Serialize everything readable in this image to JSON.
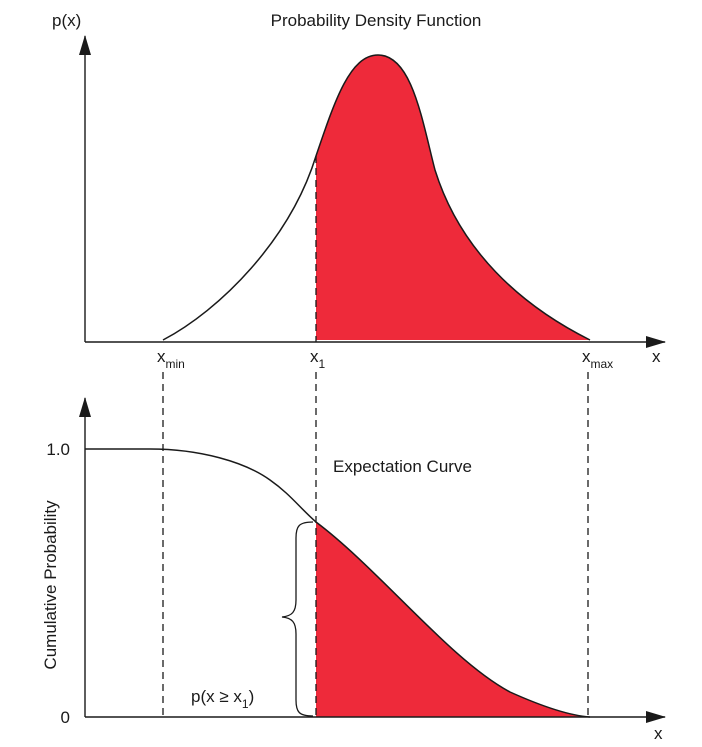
{
  "colors": {
    "fill": "#ee2a3a",
    "stroke": "#1a1a1a",
    "background": "#ffffff"
  },
  "top_panel": {
    "title": "Probability Density Function",
    "y_axis_label": "p(x)",
    "x_axis_label": "x",
    "markers": {
      "xmin": {
        "base": "x",
        "sub": "min"
      },
      "x1": {
        "base": "x",
        "sub": "1"
      },
      "xmax": {
        "base": "x",
        "sub": "max"
      }
    }
  },
  "bottom_panel": {
    "title": "Expectation Curve",
    "y_axis_label": "Cumulative Probability",
    "x_axis_label": "x",
    "y_tick_top": "1.0",
    "y_tick_bottom": "0",
    "bracket_label": {
      "prefix": "p(x ≥ x",
      "sub": "1",
      "suffix": ")"
    }
  }
}
